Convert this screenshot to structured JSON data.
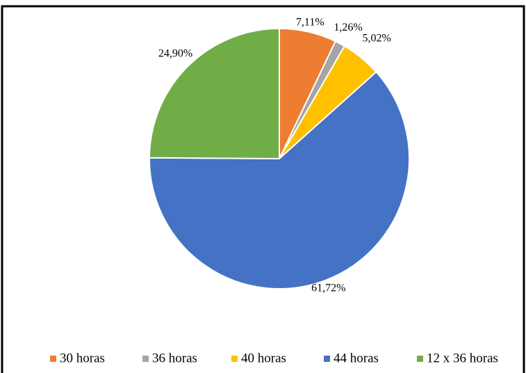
{
  "chart_data": {
    "type": "pie",
    "categories": [
      "30 horas",
      "36 horas",
      "40 horas",
      "44 horas",
      "12 x 36 horas"
    ],
    "values": [
      7.11,
      1.26,
      5.02,
      61.72,
      24.9
    ],
    "value_labels": [
      "7,11%",
      "1,26%",
      "5,02%",
      "61,72%",
      "24,90%"
    ],
    "colors": [
      "#ed7d31",
      "#a5a5a5",
      "#ffc000",
      "#4472c4",
      "#70ad47"
    ],
    "legend": "bottom"
  }
}
